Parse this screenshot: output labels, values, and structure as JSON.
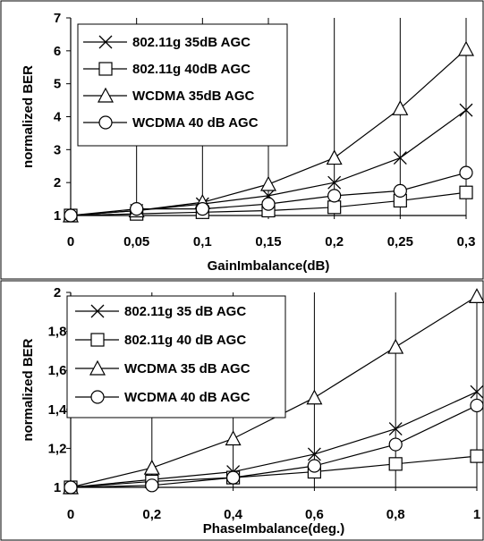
{
  "chart_data": [
    {
      "type": "line",
      "title": "",
      "xlabel": "GainImbalance(dB)",
      "ylabel": "normalized BER",
      "x": [
        0,
        0.05,
        0.1,
        0.15,
        0.2,
        0.25,
        0.3
      ],
      "xticklabels": [
        "0",
        "0,05",
        "0,1",
        "0,15",
        "0,2",
        "0,25",
        "0,3"
      ],
      "xlim": [
        0,
        0.3
      ],
      "ylim": [
        1,
        7
      ],
      "yticks": [
        1,
        2,
        3,
        4,
        5,
        6,
        7
      ],
      "yticklabels": [
        "1",
        "2",
        "3",
        "4",
        "5",
        "6",
        "7"
      ],
      "grid": "vertical",
      "legend_position": "top-left",
      "series": [
        {
          "name": "802.11g 35dB AGC",
          "marker": "x",
          "values": [
            1,
            1.15,
            1.35,
            1.6,
            2.0,
            2.75,
            4.2
          ]
        },
        {
          "name": "802.11g 40dB AGC",
          "marker": "square",
          "values": [
            1,
            1.05,
            1.1,
            1.15,
            1.25,
            1.45,
            1.7
          ]
        },
        {
          "name": "WCDMA 35dB AGC",
          "marker": "triangle",
          "values": [
            1,
            1.15,
            1.4,
            1.95,
            2.75,
            4.25,
            6.05
          ]
        },
        {
          "name": "WCDMA 40 dB AGC",
          "marker": "circle",
          "values": [
            1,
            1.2,
            1.2,
            1.35,
            1.6,
            1.75,
            2.3
          ]
        }
      ]
    },
    {
      "type": "line",
      "title": "",
      "xlabel": "PhaseImbalance(deg.)",
      "ylabel": "normalized BER",
      "x": [
        0,
        0.2,
        0.4,
        0.6,
        0.8,
        1
      ],
      "xticklabels": [
        "0",
        "0,2",
        "0,4",
        "0,6",
        "0,8",
        "1"
      ],
      "xlim": [
        0,
        1
      ],
      "ylim": [
        1,
        2
      ],
      "yticks": [
        1,
        1.2,
        1.4,
        1.6,
        1.8,
        2
      ],
      "yticklabels": [
        "1",
        "1,2",
        "1,4",
        "1,6",
        "1,8",
        "2"
      ],
      "grid": "vertical",
      "legend_position": "top-left",
      "series": [
        {
          "name": "802.11g 35 dB AGC",
          "marker": "x",
          "values": [
            1,
            1.04,
            1.08,
            1.17,
            1.3,
            1.49
          ]
        },
        {
          "name": "802.11g 40 dB AGC",
          "marker": "square",
          "values": [
            1,
            1.03,
            1.05,
            1.08,
            1.12,
            1.16
          ]
        },
        {
          "name": "WCDMA 35 dB AGC",
          "marker": "triangle",
          "values": [
            1,
            1.1,
            1.25,
            1.46,
            1.72,
            1.98
          ]
        },
        {
          "name": "WCDMA 40 dB AGC",
          "marker": "circle",
          "values": [
            1,
            1.01,
            1.05,
            1.11,
            1.22,
            1.42
          ]
        }
      ]
    }
  ]
}
